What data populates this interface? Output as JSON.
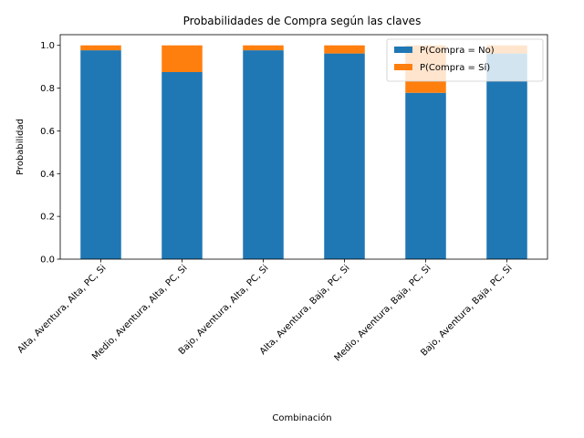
{
  "chart_data": {
    "type": "bar",
    "stacked": true,
    "title": "Probabilidades de Compra según las claves",
    "xlabel": "Combinación",
    "ylabel": "Probabilidad",
    "ylim": [
      0,
      1.05
    ],
    "yticks": [
      "0.0",
      "0.2",
      "0.4",
      "0.6",
      "0.8",
      "1.0"
    ],
    "categories": [
      "Alta, Aventura, Alta, PC, Si",
      "Medio, Aventura, Alta, PC, Si",
      "Bajo, Aventura, Alta, PC, Si",
      "Alta, Aventura, Baja, PC, Si",
      "Medio, Aventura, Baja, PC, Si",
      "Bajo, Aventura, Baja, PC, Si"
    ],
    "series": [
      {
        "name": "P(Compra = No)",
        "color": "#1f77b4",
        "values": [
          0.977,
          0.875,
          0.977,
          0.962,
          0.778,
          0.962
        ]
      },
      {
        "name": "P(Compra = Sí)",
        "color": "#ff7f0e",
        "values": [
          0.023,
          0.125,
          0.023,
          0.038,
          0.222,
          0.038
        ]
      }
    ],
    "grid": false,
    "legend_position": "top-right"
  }
}
